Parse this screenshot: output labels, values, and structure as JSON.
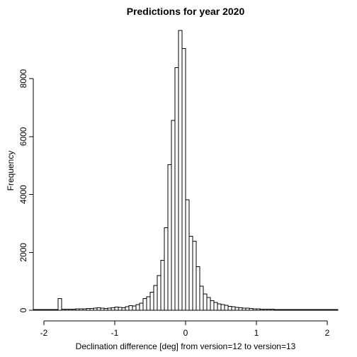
{
  "chart_data": {
    "type": "bar",
    "subtype": "histogram",
    "title": "Predictions for year 2020",
    "xlabel": "Declination difference [deg] from version=12 to version=13",
    "ylabel": "Frequency",
    "xlim": [
      -2.15,
      2.15
    ],
    "ylim": [
      0,
      9700
    ],
    "x_ticks": [
      -2,
      -1,
      0,
      1,
      2
    ],
    "x_tick_labels": [
      "-2",
      "-1",
      "0",
      "1",
      "2"
    ],
    "y_ticks": [
      0,
      2000,
      4000,
      6000,
      8000
    ],
    "y_tick_labels": [
      "0",
      "2000",
      "4000",
      "6000",
      "8000"
    ],
    "grid": false,
    "bin_width": 0.05,
    "bin_start": -2.15,
    "values": [
      30,
      30,
      30,
      30,
      30,
      30,
      30,
      400,
      40,
      40,
      40,
      40,
      50,
      50,
      50,
      60,
      60,
      70,
      80,
      70,
      60,
      70,
      80,
      110,
      100,
      90,
      120,
      160,
      150,
      200,
      250,
      400,
      460,
      620,
      860,
      1200,
      1720,
      2850,
      5030,
      6560,
      8380,
      9660,
      9040,
      3820,
      2560,
      2390,
      1500,
      830,
      560,
      440,
      330,
      270,
      220,
      200,
      170,
      140,
      120,
      100,
      80,
      70,
      70,
      60,
      50,
      50,
      40,
      40,
      40,
      40,
      30,
      30,
      30,
      30,
      30,
      30,
      30,
      30,
      30,
      30,
      30,
      30,
      30,
      30,
      30,
      30,
      30,
      30
    ]
  }
}
